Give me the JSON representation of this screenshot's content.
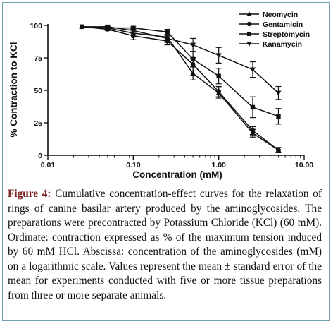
{
  "chart_data": {
    "type": "line",
    "x_scale": "log",
    "xlabel": "Concentration (mM)",
    "ylabel": "% Contraction to KCl",
    "xlim": [
      0.01,
      10.0
    ],
    "ylim": [
      0,
      100
    ],
    "x_ticks": [
      {
        "value": 0.01,
        "label": "0.01"
      },
      {
        "value": 0.1,
        "label": "0.10"
      },
      {
        "value": 1.0,
        "label": "1.00"
      },
      {
        "value": 10.0,
        "label": "10.00"
      }
    ],
    "y_ticks": [
      {
        "value": 0,
        "label": "0"
      },
      {
        "value": 25,
        "label": "25"
      },
      {
        "value": 50,
        "label": "50"
      },
      {
        "value": 75,
        "label": "75"
      },
      {
        "value": 100,
        "label": "100"
      }
    ],
    "legend_position": "top-right",
    "series": [
      {
        "name": "Neomycin",
        "marker": "triangle-up",
        "x": [
          0.025,
          0.05,
          0.1,
          0.25,
          0.5,
          1.0,
          2.5,
          5.0
        ],
        "y": [
          99,
          98,
          94,
          91,
          63,
          48,
          17,
          4
        ],
        "err": [
          0,
          1,
          3,
          4,
          5,
          4,
          3,
          2
        ]
      },
      {
        "name": "Gentamicin",
        "marker": "circle",
        "x": [
          0.025,
          0.05,
          0.1,
          0.25,
          0.5,
          1.0,
          2.5,
          5.0
        ],
        "y": [
          99,
          97,
          92,
          88,
          70,
          49,
          19,
          4
        ],
        "err": [
          0,
          1,
          3,
          3,
          5,
          4,
          3,
          2
        ]
      },
      {
        "name": "Streptomycin",
        "marker": "square",
        "x": [
          0.025,
          0.05,
          0.1,
          0.25,
          0.5,
          1.0,
          2.5,
          5.0
        ],
        "y": [
          99,
          98,
          98,
          95,
          74,
          61,
          37,
          30
        ],
        "err": [
          0,
          1,
          1,
          2,
          6,
          6,
          8,
          6
        ]
      },
      {
        "name": "Kanamycin",
        "marker": "triangle-down",
        "x": [
          0.025,
          0.05,
          0.1,
          0.25,
          0.5,
          1.0,
          2.5,
          5.0
        ],
        "y": [
          99,
          99,
          96,
          90,
          85,
          77,
          66,
          48
        ],
        "err": [
          0,
          1,
          2,
          2,
          5,
          6,
          6,
          5
        ]
      }
    ]
  },
  "caption": {
    "label": "Figure 4:",
    "text": "Cumulative concentration-effect curves for the relaxation of rings of canine basilar artery produced by the aminoglycosides. The preparations were precontracted by Potassium Chloride (KCl) (60 mM). Ordinate: contraction expressed as % of the maximum tension induced by 60 mM HCl. Abscissa: concentration of the aminoglycosides (mM) on a logarithmic scale. Values represent the mean ± standard error of the mean for experiments conducted with five or more tissue preparations from three or more separate animals."
  }
}
